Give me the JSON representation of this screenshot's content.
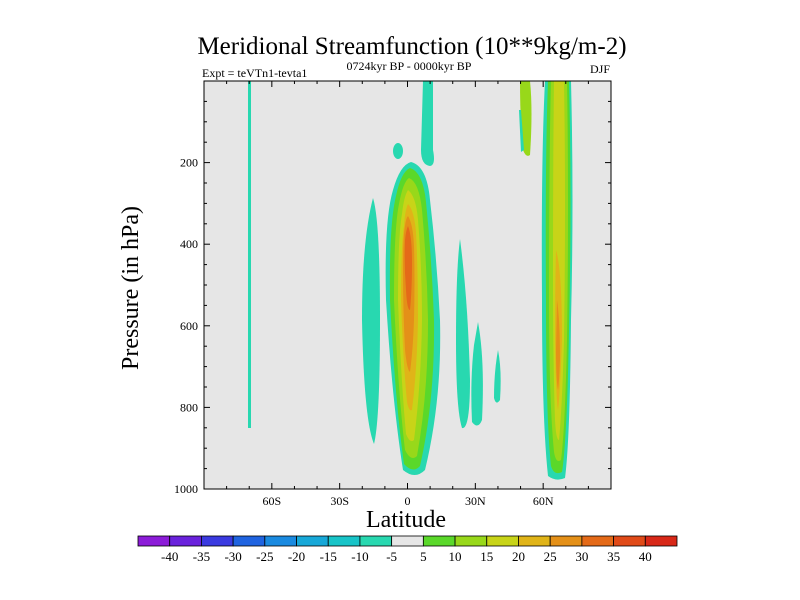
{
  "chart_data": {
    "type": "heatmap",
    "title": "Meridional Streamfunction (10**9kg/m-2)",
    "subtitle_left": "Expt = teVTn1-tevta1",
    "subtitle_center": "0724kyr BP - 0000kyr BP",
    "subtitle_right": "DJF",
    "xlabel": "Latitude",
    "ylabel": "Pressure (in hPa)",
    "xlim": [
      -90,
      90
    ],
    "ylim": [
      1000,
      0
    ],
    "x_ticks": [
      {
        "value": -60,
        "label": "60S"
      },
      {
        "value": -30,
        "label": "30S"
      },
      {
        "value": 0,
        "label": "0"
      },
      {
        "value": 30,
        "label": "30N"
      },
      {
        "value": 60,
        "label": "60N"
      }
    ],
    "y_ticks": [
      {
        "value": 200,
        "label": "200"
      },
      {
        "value": 400,
        "label": "400"
      },
      {
        "value": 600,
        "label": "600"
      },
      {
        "value": 800,
        "label": "800"
      },
      {
        "value": 1000,
        "label": "1000"
      }
    ],
    "background_color": "#e6e6e6",
    "colorbar": {
      "labels": [
        "-40",
        "-35",
        "-30",
        "-25",
        "-20",
        "-15",
        "-10",
        "-5",
        "5",
        "10",
        "15",
        "20",
        "25",
        "30",
        "35",
        "40"
      ],
      "colors": [
        "#8c1cd8",
        "#6a22dc",
        "#3a3ae0",
        "#1f63e0",
        "#1a8ae0",
        "#17a8d8",
        "#18c4c8",
        "#28d8b0",
        "#e6e6e6",
        "#5ad82a",
        "#98d81a",
        "#c8d418",
        "#e0b418",
        "#e49018",
        "#e46a18",
        "#e04a18",
        "#d82818"
      ]
    },
    "regions": [
      {
        "name": "SH thin negative strip",
        "level": -5,
        "lon_range": [
          -69,
          -68
        ],
        "p_range": [
          0,
          850
        ]
      },
      {
        "name": "Equatorial cell max",
        "level": 35,
        "lat_center": 1,
        "p_range": [
          200,
          980
        ]
      },
      {
        "name": "NH midlatitude cell",
        "level": 30,
        "lat_center": 60,
        "p_range": [
          0,
          980
        ]
      },
      {
        "name": "Upper tropical negative",
        "level": -5,
        "lat_center": 9,
        "p_range": [
          0,
          190
        ]
      },
      {
        "name": "SH tropical negative",
        "level": -5,
        "lat_center": -15,
        "p_range": [
          290,
          890
        ]
      },
      {
        "name": "NH subtropical negative",
        "level": -5,
        "lat_center": 25,
        "p_range": [
          380,
          840
        ]
      }
    ]
  }
}
